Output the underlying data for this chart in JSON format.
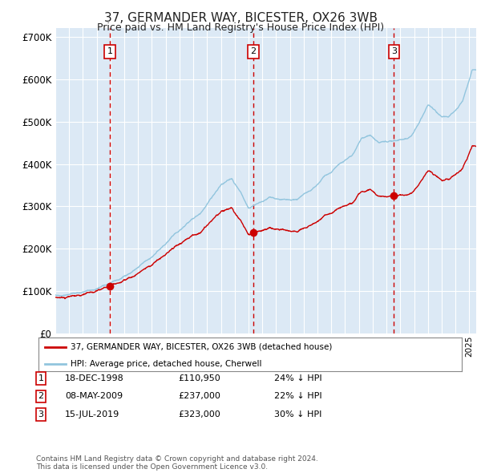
{
  "title": "37, GERMANDER WAY, BICESTER, OX26 3WB",
  "subtitle": "Price paid vs. HM Land Registry's House Price Index (HPI)",
  "title_fontsize": 11,
  "subtitle_fontsize": 9,
  "background_color": "#ffffff",
  "plot_bg_color": "#dce9f5",
  "grid_color": "#ffffff",
  "ylim": [
    0,
    720000
  ],
  "yticks": [
    0,
    100000,
    200000,
    300000,
    400000,
    500000,
    600000,
    700000
  ],
  "ytick_labels": [
    "£0",
    "£100K",
    "£200K",
    "£300K",
    "£400K",
    "£500K",
    "£600K",
    "£700K"
  ],
  "year_start": 1995.0,
  "year_end": 2025.5,
  "purchases": [
    {
      "label": "1",
      "date_num": 1998.96,
      "price": 110950,
      "pct": "24%",
      "date_str": "18-DEC-1998"
    },
    {
      "label": "2",
      "date_num": 2009.35,
      "price": 237000,
      "pct": "22%",
      "date_str": "08-MAY-2009"
    },
    {
      "label": "3",
      "date_num": 2019.54,
      "price": 323000,
      "pct": "30%",
      "date_str": "15-JUL-2019"
    }
  ],
  "hpi_color": "#92c5de",
  "price_color": "#cc0000",
  "dashed_color": "#cc0000",
  "legend_label_price": "37, GERMANDER WAY, BICESTER, OX26 3WB (detached house)",
  "legend_label_hpi": "HPI: Average price, detached house, Cherwell",
  "footer_text": "Contains HM Land Registry data © Crown copyright and database right 2024.\nThis data is licensed under the Open Government Licence v3.0."
}
